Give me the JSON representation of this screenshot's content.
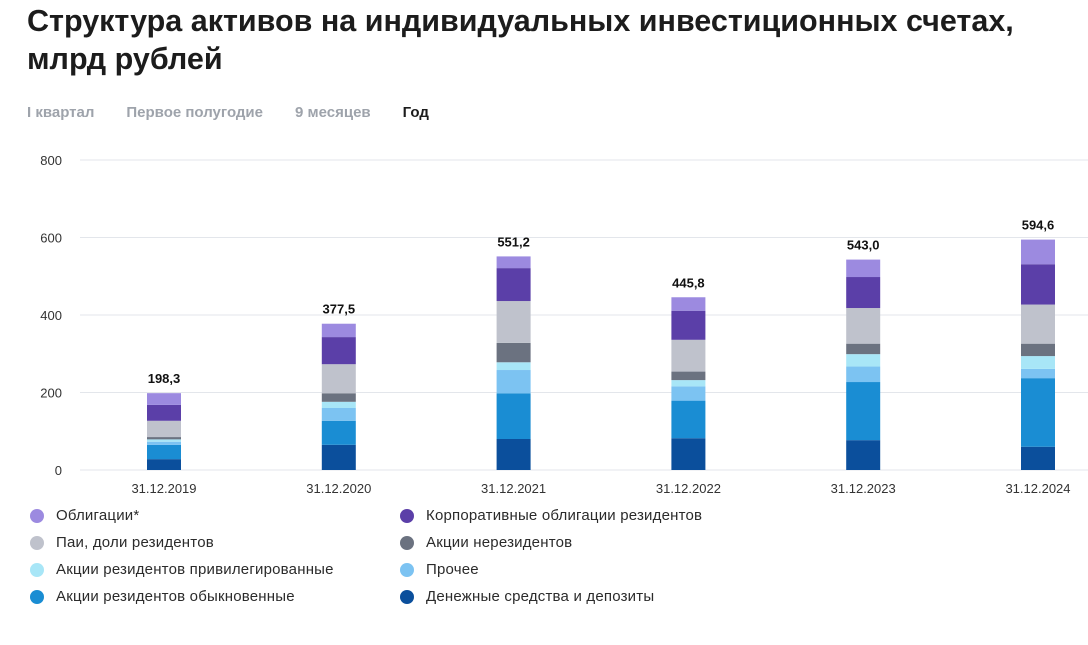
{
  "title": "Структура активов на индивидуальных инвестиционных счетах, млрд рублей",
  "tabs": [
    {
      "label": "I квартал",
      "active": false
    },
    {
      "label": "Первое полугодие",
      "active": false
    },
    {
      "label": "9 месяцев",
      "active": false
    },
    {
      "label": "Год",
      "active": true
    }
  ],
  "legend": [
    {
      "label": "Облигации*",
      "color": "#9c8ae0"
    },
    {
      "label": "Корпоративные облигации резидентов",
      "color": "#5b3fa8"
    },
    {
      "label": "Паи, доли резидентов",
      "color": "#bfc2cc"
    },
    {
      "label": "Акции нерезидентов",
      "color": "#6b7280"
    },
    {
      "label": "Акции резидентов привилегированные",
      "color": "#a8e6f7"
    },
    {
      "label": "Прочее",
      "color": "#7cc3f2"
    },
    {
      "label": "Акции резидентов обыкновенные",
      "color": "#1a8dd3"
    },
    {
      "label": "Денежные средства и депозиты",
      "color": "#0b4f9c"
    }
  ],
  "chart_data": {
    "type": "bar",
    "stacked": true,
    "categories": [
      "31.12.2019",
      "31.12.2020",
      "31.12.2021",
      "31.12.2022",
      "31.12.2023",
      "31.12.2024"
    ],
    "totals": [
      198.3,
      377.5,
      551.2,
      445.8,
      543.0,
      594.6
    ],
    "total_labels": [
      "198,3",
      "377,5",
      "551,2",
      "445,8",
      "543,0",
      "594,6"
    ],
    "ylim": [
      0,
      800
    ],
    "yticks": [
      0,
      200,
      400,
      600,
      800
    ],
    "grid": true,
    "legend_position": "bottom",
    "series": [
      {
        "name": "Денежные средства и депозиты",
        "color": "#0b4f9c",
        "values": [
          28,
          65,
          80,
          82,
          77,
          60
        ]
      },
      {
        "name": "Акции резидентов обыкновенные",
        "color": "#1a8dd3",
        "values": [
          37,
          62,
          118,
          97,
          150,
          177
        ]
      },
      {
        "name": "Прочее",
        "color": "#7cc3f2",
        "values": [
          8,
          33,
          60,
          37,
          40,
          24
        ]
      },
      {
        "name": "Акции резидентов привилегированные",
        "color": "#a8e6f7",
        "values": [
          6,
          16,
          20,
          16,
          32,
          33
        ]
      },
      {
        "name": "Акции нерезидентов",
        "color": "#6b7280",
        "values": [
          6,
          22,
          50,
          22,
          27,
          32
        ]
      },
      {
        "name": "Паи, доли резидентов",
        "color": "#bfc2cc",
        "values": [
          42,
          75,
          108,
          82,
          92,
          101
        ]
      },
      {
        "name": "Корпоративные облигации резидентов",
        "color": "#5b3fa8",
        "values": [
          41,
          70,
          85,
          75,
          80,
          104
        ]
      },
      {
        "name": "Облигации*",
        "color": "#9c8ae0",
        "values": [
          30.3,
          34.5,
          30.2,
          34.8,
          45,
          63.6
        ]
      }
    ]
  }
}
